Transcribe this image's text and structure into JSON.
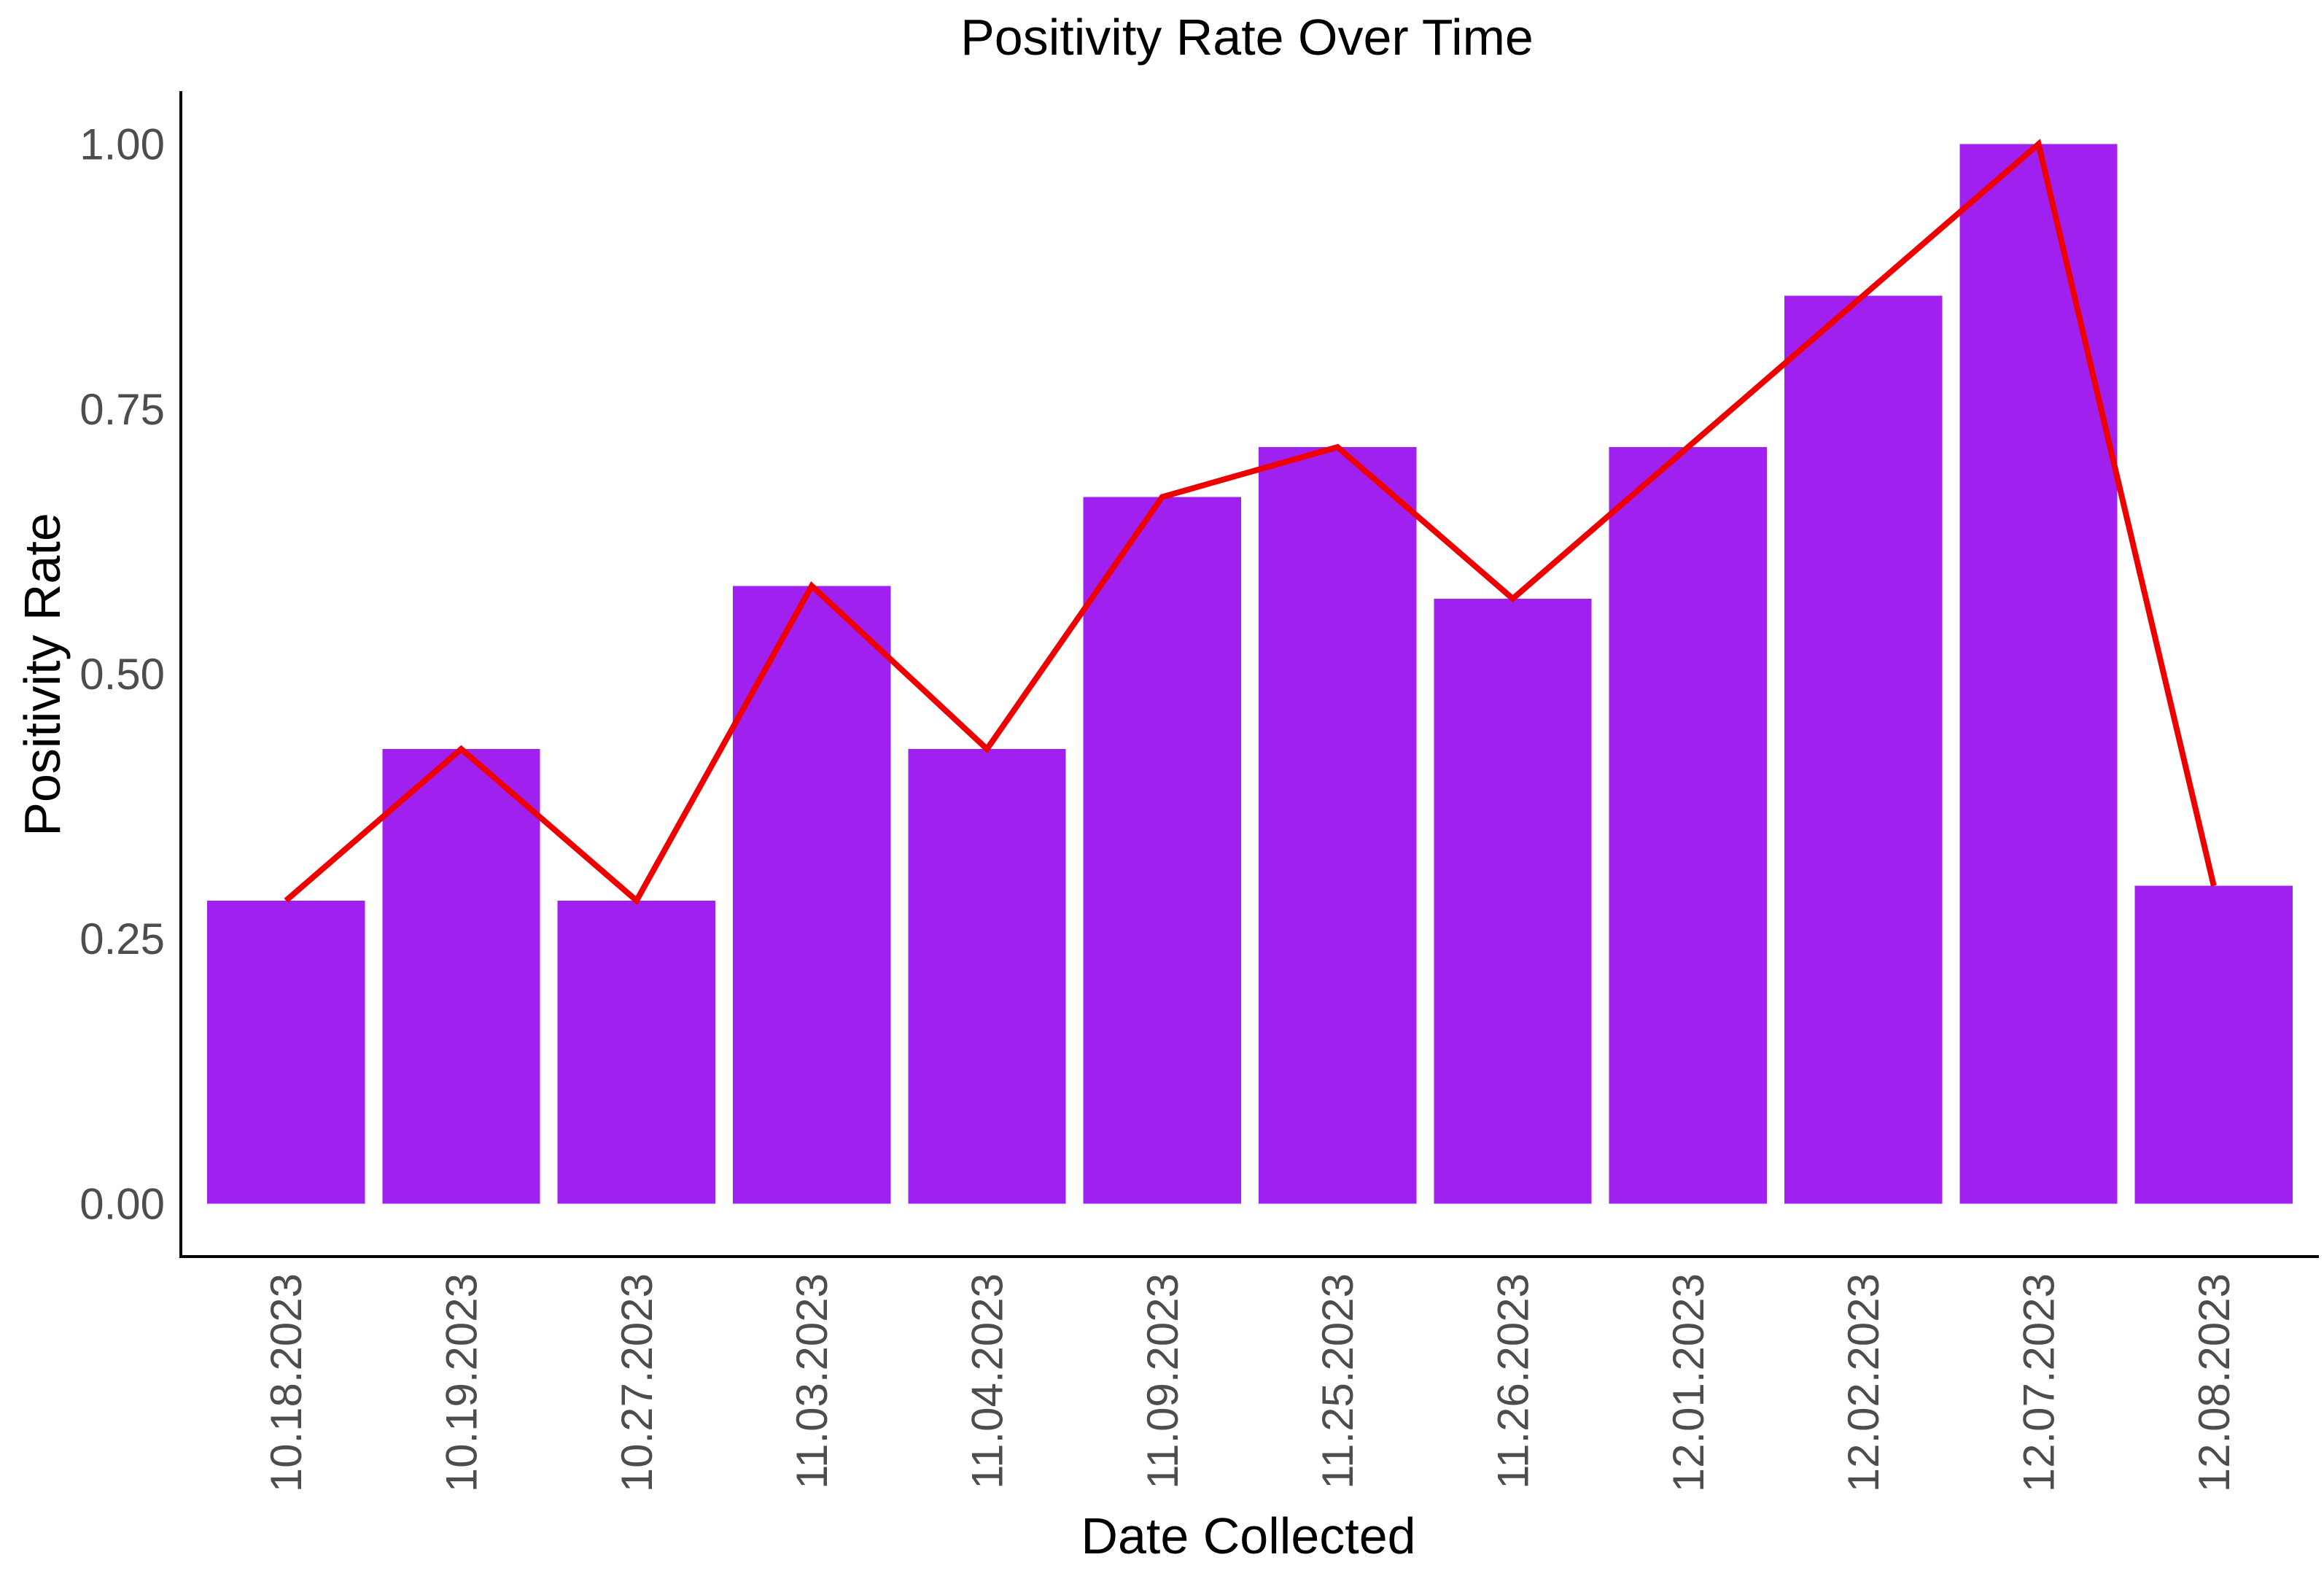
{
  "chart_data": {
    "type": "bar",
    "title": "Positivity Rate Over Time",
    "xlabel": "Date Collected",
    "ylabel": "Positivity Rate",
    "categories": [
      "10.18.2023",
      "10.19.2023",
      "10.27.2023",
      "11.03.2023",
      "11.04.2023",
      "11.09.2023",
      "11.25.2023",
      "11.26.2023",
      "12.01.2023",
      "12.02.2023",
      "12.07.2023",
      "12.08.2023"
    ],
    "series": [
      {
        "type": "bar",
        "color": "#A020F0",
        "values": [
          0.286,
          0.429,
          0.286,
          0.583,
          0.429,
          0.667,
          0.714,
          0.571,
          0.714,
          0.857,
          1.0,
          0.3
        ]
      },
      {
        "type": "line",
        "color": "#EE0000",
        "values": [
          0.286,
          0.429,
          0.286,
          0.583,
          0.429,
          0.667,
          0.714,
          0.571,
          0.714,
          0.857,
          1.0,
          0.3
        ]
      }
    ],
    "yticks": [
      0.0,
      0.25,
      0.5,
      0.75,
      1.0
    ],
    "ytick_labels": [
      "0.00",
      "0.25",
      "0.50",
      "0.75",
      "1.00"
    ],
    "ylim": [
      -0.05,
      1.05
    ],
    "grid": false,
    "legend": "none"
  }
}
